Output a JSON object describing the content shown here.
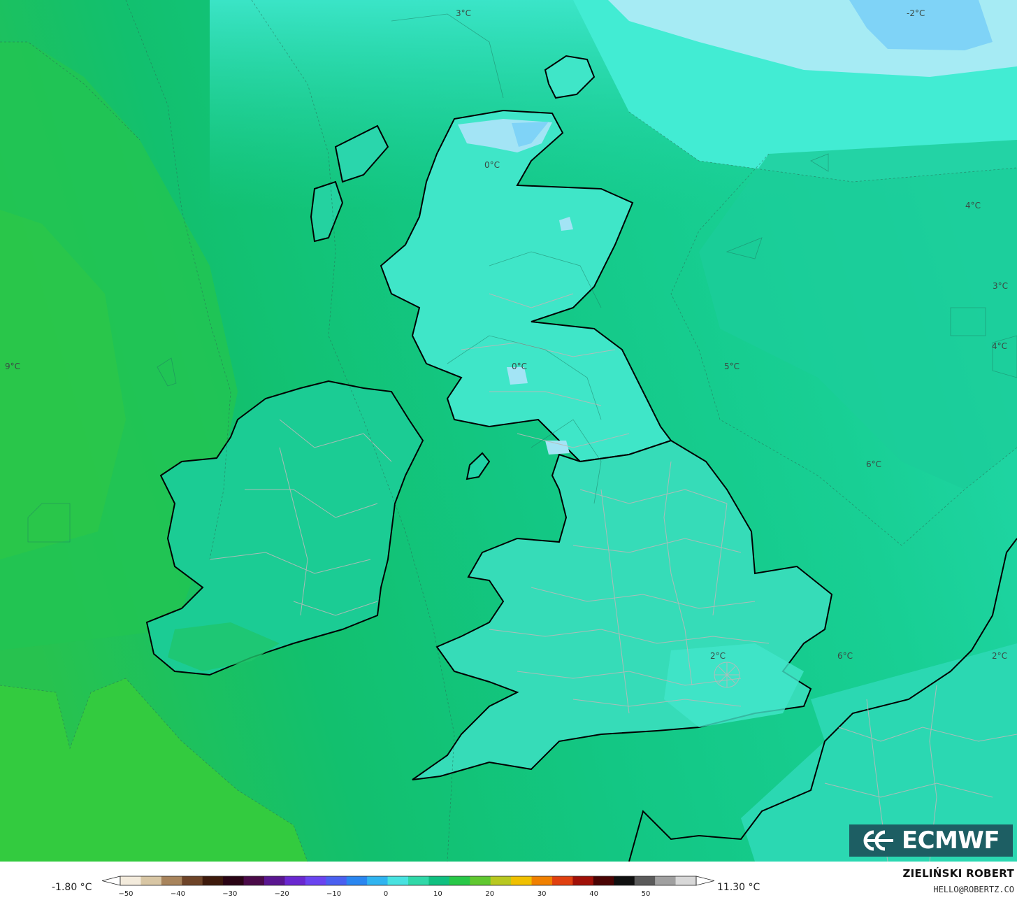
{
  "map": {
    "contour_labels": [
      {
        "id": "label-3c-north",
        "text": "3°C"
      },
      {
        "id": "label-minus2c",
        "text": "-2°C"
      },
      {
        "id": "label-0c-scotland",
        "text": "0°C"
      },
      {
        "id": "label-4c-ne",
        "text": "4°C"
      },
      {
        "id": "label-3c-east",
        "text": "3°C"
      },
      {
        "id": "label-4c-east",
        "text": "4°C"
      },
      {
        "id": "label-9c-west",
        "text": "9°C"
      },
      {
        "id": "label-0c-borders",
        "text": "0°C"
      },
      {
        "id": "label-5c-northsea",
        "text": "5°C"
      },
      {
        "id": "label-6c-northsea",
        "text": "6°C"
      },
      {
        "id": "label-2c-london",
        "text": "2°C"
      },
      {
        "id": "label-6c-channel",
        "text": "6°C"
      },
      {
        "id": "label-2c-continent",
        "text": "2°C"
      }
    ]
  },
  "legend": {
    "min_value": "-1.80 °C",
    "max_value": "11.30 °C",
    "ticks": [
      "−50",
      "−40",
      "−30",
      "−20",
      "−10",
      "0",
      "10",
      "20",
      "30",
      "40",
      "50"
    ],
    "colors": [
      "#f3ebdc",
      "#d8c6a4",
      "#a8845c",
      "#6e4428",
      "#3e1a0c",
      "#2a0414",
      "#4a0a48",
      "#5a1690",
      "#6a28d0",
      "#6a44f0",
      "#4a60f0",
      "#2a86f0",
      "#30b4f0",
      "#48e2e0",
      "#30d8a8",
      "#10c080",
      "#28c848",
      "#60c830",
      "#b8c820",
      "#f0c000",
      "#f08000",
      "#e04010",
      "#a01008",
      "#4a0404",
      "#101010",
      "#5a5a5a",
      "#a0a0a0",
      "#d8d8d8"
    ]
  },
  "attribution": {
    "author": "ZIELIŃSKI ROBERT",
    "email": "HELLO@ROBERTZ.CO",
    "logo": "ECMWF"
  },
  "colors": {
    "sea_far": "#1fbf63",
    "sea_mid": "#14c886",
    "land_cold": "#3ee6c9",
    "cold_pocket": "#a3e4f5",
    "very_cold": "#7fd3f7",
    "coastline": "#000000",
    "borders": "#b9b9b9",
    "logo_bg": "#1d5e63"
  }
}
